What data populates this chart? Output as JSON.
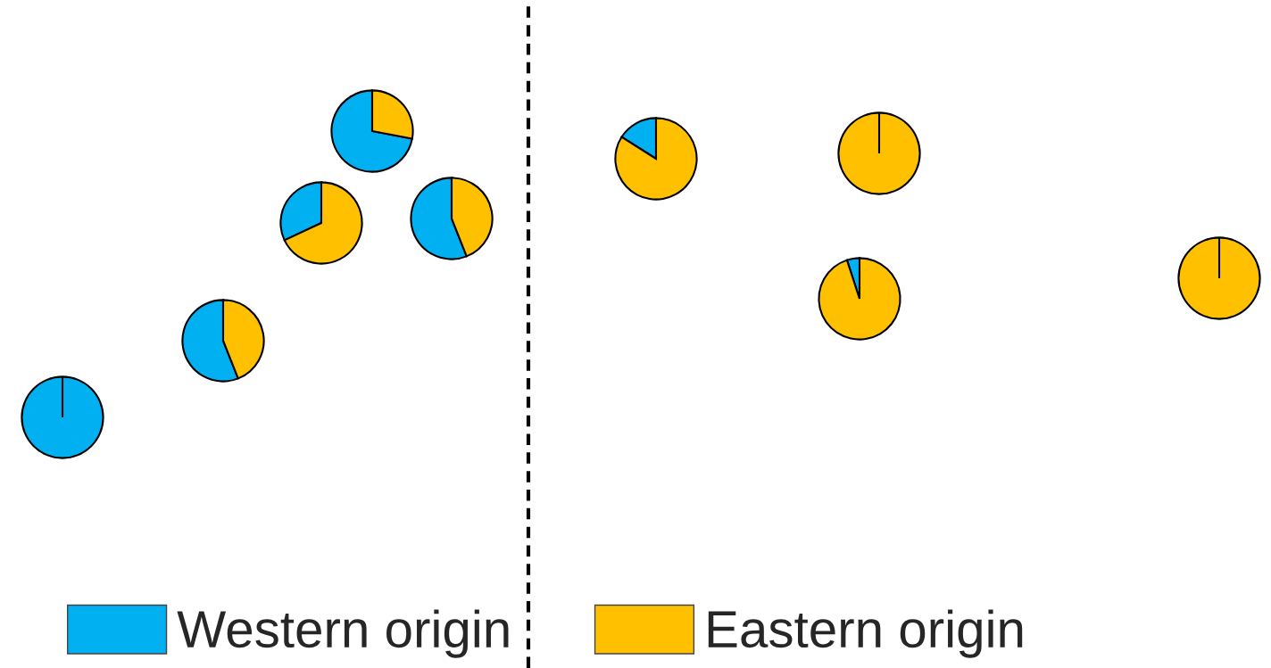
{
  "chart_data": [
    {
      "type": "pie",
      "categories": [
        "Western origin",
        "Eastern origin"
      ],
      "values": [
        72,
        28
      ],
      "colors": [
        "#00b0f0",
        "#ffc000"
      ],
      "legend": "bottom"
    },
    {
      "type": "pie",
      "categories": [
        null,
        null
      ],
      "values": [
        0,
        100
      ],
      "colors": [
        "#00b0f0",
        "#ffc000"
      ]
    },
    {
      "type": "pie",
      "categories": [
        null,
        null
      ],
      "values": [
        16,
        84
      ],
      "colors": [
        "#00b0f0",
        "#ffc000"
      ]
    },
    {
      "type": "pie",
      "categories": [
        null,
        null
      ],
      "values": [
        56,
        44
      ],
      "colors": [
        "#00b0f0",
        "#ffc000"
      ]
    },
    {
      "type": "pie",
      "categories": [
        null,
        null
      ],
      "values": [
        32,
        68
      ],
      "colors": [
        "#00b0f0",
        "#ffc000"
      ]
    },
    {
      "type": "pie",
      "categories": [
        null,
        null
      ],
      "values": [
        0,
        100
      ],
      "colors": [
        "#00b0f0",
        "#ffc000"
      ]
    },
    {
      "type": "pie",
      "categories": [
        null,
        null
      ],
      "values": [
        5,
        95
      ],
      "colors": [
        "#00b0f0",
        "#ffc000"
      ]
    },
    {
      "type": "pie",
      "categories": [
        null,
        null
      ],
      "values": [
        56,
        44
      ],
      "colors": [
        "#00b0f0",
        "#ffc000"
      ]
    },
    {
      "type": "pie",
      "categories": [
        null,
        null
      ],
      "values": [
        100,
        0
      ],
      "colors": [
        "#00b0f0",
        "#ffc000"
      ]
    }
  ]
}
